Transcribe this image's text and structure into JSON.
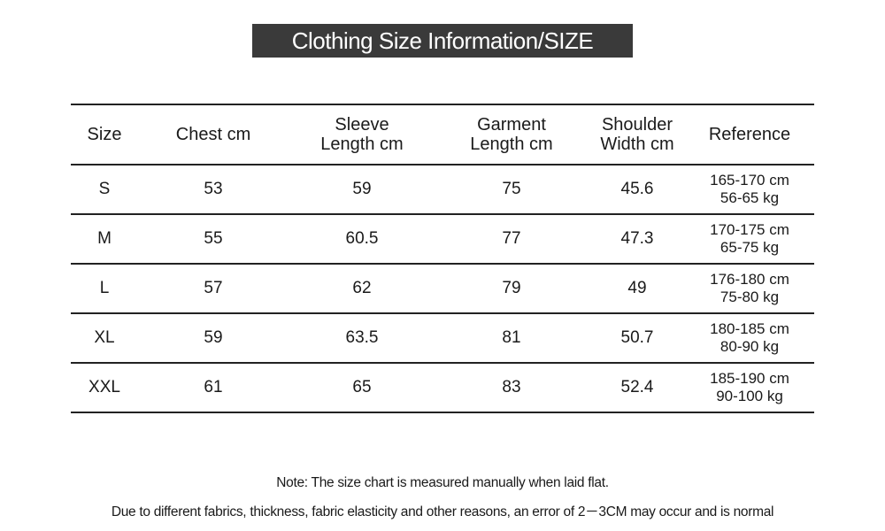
{
  "header": {
    "title": "Clothing Size Information/SIZE"
  },
  "table": {
    "columns": [
      [
        "Size"
      ],
      [
        "Chest cm"
      ],
      [
        "Sleeve",
        "Length cm"
      ],
      [
        "Garment",
        "Length cm"
      ],
      [
        "Shoulder",
        "Width cm"
      ],
      [
        "Reference"
      ]
    ],
    "rows": [
      [
        [
          "S"
        ],
        [
          "53"
        ],
        [
          "59"
        ],
        [
          "75"
        ],
        [
          "45.6"
        ],
        [
          "165-170 cm",
          "56-65 kg"
        ]
      ],
      [
        [
          "M"
        ],
        [
          "55"
        ],
        [
          "60.5"
        ],
        [
          "77"
        ],
        [
          "47.3"
        ],
        [
          "170-175 cm",
          "65-75 kg"
        ]
      ],
      [
        [
          "L"
        ],
        [
          "57"
        ],
        [
          "62"
        ],
        [
          "79"
        ],
        [
          "49"
        ],
        [
          "176-180 cm",
          "75-80 kg"
        ]
      ],
      [
        [
          "XL"
        ],
        [
          "59"
        ],
        [
          "63.5"
        ],
        [
          "81"
        ],
        [
          "50.7"
        ],
        [
          "180-185 cm",
          "80-90 kg"
        ]
      ],
      [
        [
          "XXL"
        ],
        [
          "61"
        ],
        [
          "65"
        ],
        [
          "83"
        ],
        [
          "52.4"
        ],
        [
          "185-190 cm",
          "90-100 kg"
        ]
      ]
    ]
  },
  "notes": [
    "Note: The size chart is measured manually when laid flat.",
    "Due to different fabrics, thickness, fabric elasticity and other reasons, an error of 2－3CM may occur and is normal"
  ]
}
